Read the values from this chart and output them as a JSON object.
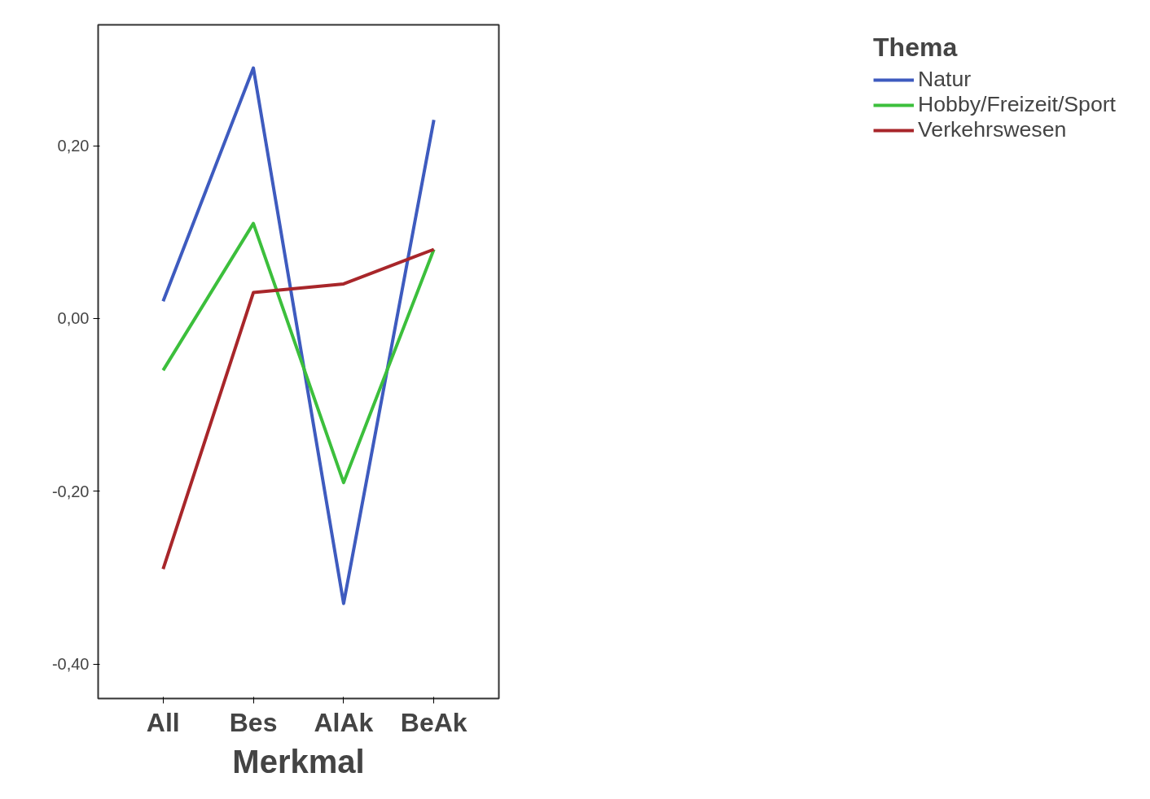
{
  "chart_data": {
    "type": "line",
    "xlabel": "Merkmal",
    "legend_title": "Thema",
    "legend": "right",
    "grid": false,
    "marker": "none",
    "line_style": "solid",
    "categories": [
      "All",
      "Bes",
      "AlAk",
      "BeAk"
    ],
    "ylim": [
      -0.44,
      0.34
    ],
    "yticks": [
      {
        "value": -0.4,
        "label": "-0,40"
      },
      {
        "value": -0.2,
        "label": "-0,20"
      },
      {
        "value": 0,
        "label": "0,00"
      },
      {
        "value": 0.2,
        "label": "0,20"
      }
    ],
    "series": [
      {
        "name": "Natur",
        "color": "#3e5bbf",
        "values": [
          0.02,
          0.29,
          -0.33,
          0.23
        ]
      },
      {
        "name": "Hobby/Freizeit/Sport",
        "color": "#3cbf3c",
        "values": [
          -0.06,
          0.11,
          -0.19,
          0.08
        ]
      },
      {
        "name": "Verkehrswesen",
        "color": "#a8262a",
        "values": [
          -0.29,
          0.03,
          0.04,
          0.08
        ]
      }
    ]
  }
}
